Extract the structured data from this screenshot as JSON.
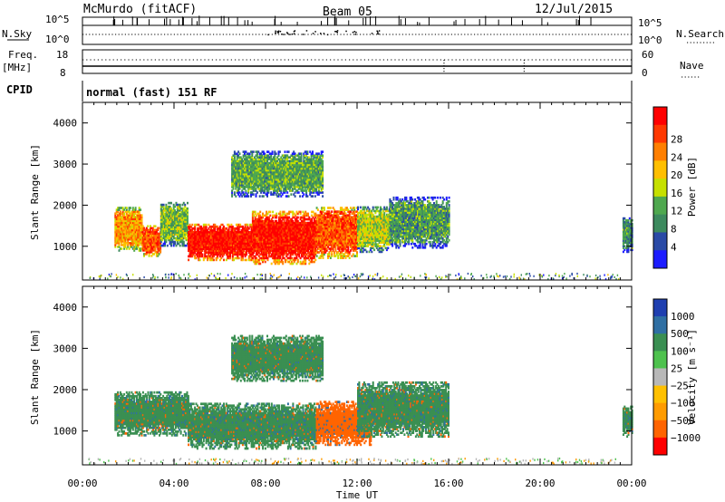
{
  "header": {
    "station": "McMurdo (fitACF)",
    "beam": "Beam 05",
    "date": "12/Jul/2015"
  },
  "panel_labels": {
    "nsky": "N.Sky",
    "nsearch": "N.Search",
    "freq": "Freq.",
    "freq_unit": "[MHz]",
    "nave": "Nave",
    "cpid": "CPID",
    "mode": "normal (fast) 151 RF"
  },
  "noise_axis": {
    "left_top": "10^5",
    "left_bottom": "10^0",
    "right_top": "10^5",
    "right_bottom": "10^0"
  },
  "freq_axis": {
    "left_top": "18",
    "left_bottom": "8",
    "right_top": "60",
    "right_bottom": "0"
  },
  "colors": {
    "power": [
      "#1c1cff",
      "#2a4aa6",
      "#3d8a5e",
      "#4fa84f",
      "#c6e000",
      "#ffbf00",
      "#ff7f00",
      "#ff3800",
      "#ff0000"
    ],
    "velocity": [
      "#ff0000",
      "#ff6400",
      "#ff9b00",
      "#ffc000",
      "#b8b8b8",
      "#4ec24e",
      "#3a8f52",
      "#2f6fa3",
      "#1f3fb0"
    ],
    "ground_scatter": "#b4b4b4"
  },
  "chart_data": [
    {
      "type": "heatmap",
      "name": "power",
      "ylabel": "Slant Range [km]",
      "xlabel": "",
      "xlim_hours": [
        0,
        24
      ],
      "ylim_km": [
        180,
        4500
      ],
      "x_tick_labels": [
        "00:00",
        "04:00",
        "08:00",
        "12:00",
        "16:00",
        "20:00",
        "00:00"
      ],
      "y_ticks": [
        1000,
        2000,
        3000,
        4000
      ],
      "colorbar": {
        "label": "Power [dB]",
        "tick_labels": [
          "4",
          "8",
          "12",
          "16",
          "20",
          "24",
          "28"
        ],
        "range_db": [
          0,
          30
        ]
      },
      "echo_regions": [
        {
          "t0": 1.4,
          "t1": 2.6,
          "r0": 880,
          "r1": 1950,
          "level": 20
        },
        {
          "t0": 2.6,
          "t1": 3.4,
          "r0": 750,
          "r1": 1500,
          "level": 24
        },
        {
          "t0": 3.4,
          "t1": 4.6,
          "r0": 1000,
          "r1": 2050,
          "level": 12
        },
        {
          "t0": 4.6,
          "t1": 7.4,
          "r0": 650,
          "r1": 1550,
          "level": 28
        },
        {
          "t0": 7.4,
          "t1": 10.2,
          "r0": 560,
          "r1": 1850,
          "level": 28
        },
        {
          "t0": 10.2,
          "t1": 12.0,
          "r0": 700,
          "r1": 1950,
          "level": 24
        },
        {
          "t0": 12.0,
          "t1": 13.4,
          "r0": 850,
          "r1": 1950,
          "level": 14
        },
        {
          "t0": 13.4,
          "t1": 16.0,
          "r0": 950,
          "r1": 2200,
          "level": 9
        },
        {
          "t0": 6.5,
          "t1": 10.5,
          "r0": 2200,
          "r1": 3300,
          "level": 10
        },
        {
          "t0": 23.6,
          "t1": 24.0,
          "r0": 850,
          "r1": 1700,
          "level": 8
        }
      ]
    },
    {
      "type": "heatmap",
      "name": "velocity",
      "ylabel": "Slant Range [km]",
      "xlabel": "Time UT",
      "xlim_hours": [
        0,
        24
      ],
      "ylim_km": [
        180,
        4500
      ],
      "x_tick_labels": [
        "00:00",
        "04:00",
        "08:00",
        "12:00",
        "16:00",
        "20:00",
        "00:00"
      ],
      "y_ticks": [
        1000,
        2000,
        3000,
        4000
      ],
      "colorbar": {
        "label": "Velocity [m s⁻¹]",
        "tick_labels": [
          "1000",
          "500",
          "100",
          "25",
          "−25",
          "−100",
          "−500",
          "−1000"
        ]
      },
      "echo_regions": [
        {
          "t0": 1.4,
          "t1": 4.6,
          "r0": 880,
          "r1": 1950,
          "level": 100
        },
        {
          "t0": 4.6,
          "t1": 10.2,
          "r0": 560,
          "r1": 1650,
          "level": 100
        },
        {
          "t0": 10.2,
          "t1": 12.6,
          "r0": 650,
          "r1": 1700,
          "level": -100
        },
        {
          "t0": 12.0,
          "t1": 16.0,
          "r0": 850,
          "r1": 2200,
          "level": 100
        },
        {
          "t0": 6.5,
          "t1": 10.5,
          "r0": 2200,
          "r1": 3300,
          "level": 100
        },
        {
          "t0": 23.6,
          "t1": 24.0,
          "r0": 850,
          "r1": 1600,
          "level": 100
        }
      ]
    }
  ]
}
